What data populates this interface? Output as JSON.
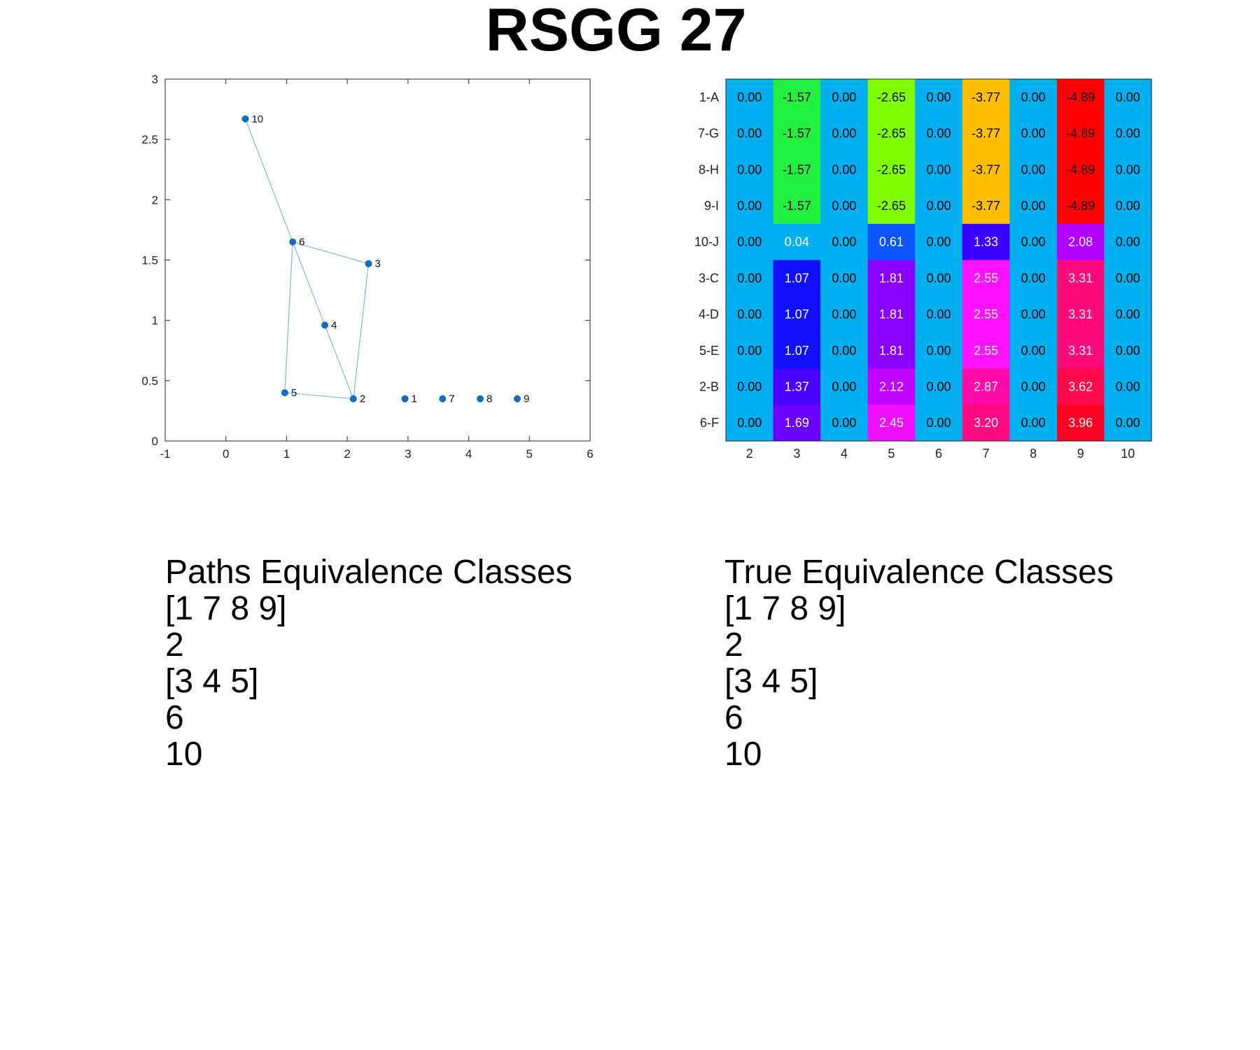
{
  "title": "RSGG 27",
  "graph_chart": {
    "type": "scatter",
    "xlim": [
      -1,
      6
    ],
    "ylim": [
      0,
      3
    ],
    "x_ticks": [
      -1,
      0,
      1,
      2,
      3,
      4,
      5,
      6
    ],
    "y_ticks": [
      0,
      0.5,
      1,
      1.5,
      2,
      2.5,
      3
    ],
    "nodes": [
      {
        "label": "1",
        "x": 2.95,
        "y": 0.35
      },
      {
        "label": "2",
        "x": 2.1,
        "y": 0.35
      },
      {
        "label": "3",
        "x": 2.35,
        "y": 1.47
      },
      {
        "label": "4",
        "x": 1.63,
        "y": 0.96
      },
      {
        "label": "5",
        "x": 0.97,
        "y": 0.4
      },
      {
        "label": "6",
        "x": 1.1,
        "y": 1.65
      },
      {
        "label": "7",
        "x": 3.57,
        "y": 0.35
      },
      {
        "label": "8",
        "x": 4.19,
        "y": 0.35
      },
      {
        "label": "9",
        "x": 4.8,
        "y": 0.35
      },
      {
        "label": "10",
        "x": 0.32,
        "y": 2.67
      }
    ],
    "edges": [
      [
        "10",
        "6"
      ],
      [
        "6",
        "3"
      ],
      [
        "3",
        "2"
      ],
      [
        "6",
        "4"
      ],
      [
        "4",
        "2"
      ],
      [
        "6",
        "5"
      ],
      [
        "5",
        "2"
      ]
    ],
    "color": "#0e6fbd",
    "edge_color": "#7fb6e3"
  },
  "chart_data": {
    "type": "heatmap",
    "columns": [
      "2",
      "3",
      "4",
      "5",
      "6",
      "7",
      "8",
      "9",
      "10"
    ],
    "rows": [
      "1-A",
      "7-G",
      "8-H",
      "9-I",
      "10-J",
      "3-C",
      "4-D",
      "5-E",
      "2-B",
      "6-F"
    ],
    "values": [
      [
        "0.00",
        "-1.57",
        "0.00",
        "-2.65",
        "0.00",
        "-3.77",
        "0.00",
        "-4.89",
        "0.00"
      ],
      [
        "0.00",
        "-1.57",
        "0.00",
        "-2.65",
        "0.00",
        "-3.77",
        "0.00",
        "-4.89",
        "0.00"
      ],
      [
        "0.00",
        "-1.57",
        "0.00",
        "-2.65",
        "0.00",
        "-3.77",
        "0.00",
        "-4.89",
        "0.00"
      ],
      [
        "0.00",
        "-1.57",
        "0.00",
        "-2.65",
        "0.00",
        "-3.77",
        "0.00",
        "-4.89",
        "0.00"
      ],
      [
        "0.00",
        "0.04",
        "0.00",
        "0.61",
        "0.00",
        "1.33",
        "0.00",
        "2.08",
        "0.00"
      ],
      [
        "0.00",
        "1.07",
        "0.00",
        "1.81",
        "0.00",
        "2.55",
        "0.00",
        "3.31",
        "0.00"
      ],
      [
        "0.00",
        "1.07",
        "0.00",
        "1.81",
        "0.00",
        "2.55",
        "0.00",
        "3.31",
        "0.00"
      ],
      [
        "0.00",
        "1.07",
        "0.00",
        "1.81",
        "0.00",
        "2.55",
        "0.00",
        "3.31",
        "0.00"
      ],
      [
        "0.00",
        "1.37",
        "0.00",
        "2.12",
        "0.00",
        "2.87",
        "0.00",
        "3.62",
        "0.00"
      ],
      [
        "0.00",
        "1.69",
        "0.00",
        "2.45",
        "0.00",
        "3.20",
        "0.00",
        "3.96",
        "0.00"
      ]
    ],
    "colors": [
      [
        "#00b0f0",
        "#22f040",
        "#00b0f0",
        "#80ff00",
        "#00b0f0",
        "#ffbf00",
        "#00b0f0",
        "#ff0000",
        "#00b0f0"
      ],
      [
        "#00b0f0",
        "#22f040",
        "#00b0f0",
        "#80ff00",
        "#00b0f0",
        "#ffbf00",
        "#00b0f0",
        "#ff0000",
        "#00b0f0"
      ],
      [
        "#00b0f0",
        "#22f040",
        "#00b0f0",
        "#80ff00",
        "#00b0f0",
        "#ffbf00",
        "#00b0f0",
        "#ff0000",
        "#00b0f0"
      ],
      [
        "#00b0f0",
        "#22f040",
        "#00b0f0",
        "#80ff00",
        "#00b0f0",
        "#ffbf00",
        "#00b0f0",
        "#ff0000",
        "#00b0f0"
      ],
      [
        "#00b0f0",
        "#00b0f0",
        "#00b0f0",
        "#0a55ff",
        "#00b0f0",
        "#3a00ff",
        "#00b0f0",
        "#b400ff",
        "#00b0f0"
      ],
      [
        "#00b0f0",
        "#1010ff",
        "#00b0f0",
        "#8a00ff",
        "#00b0f0",
        "#ff10ff",
        "#00b0f0",
        "#ff0a7a",
        "#00b0f0"
      ],
      [
        "#00b0f0",
        "#1010ff",
        "#00b0f0",
        "#8a00ff",
        "#00b0f0",
        "#ff10ff",
        "#00b0f0",
        "#ff0a7a",
        "#00b0f0"
      ],
      [
        "#00b0f0",
        "#1010ff",
        "#00b0f0",
        "#8a00ff",
        "#00b0f0",
        "#ff10ff",
        "#00b0f0",
        "#ff0a7a",
        "#00b0f0"
      ],
      [
        "#00b0f0",
        "#4a00ff",
        "#00b0f0",
        "#c400ff",
        "#00b0f0",
        "#ff0aa8",
        "#00b0f0",
        "#ff0a4a",
        "#00b0f0"
      ],
      [
        "#00b0f0",
        "#6a00ff",
        "#00b0f0",
        "#ee10ff",
        "#00b0f0",
        "#ff0a80",
        "#00b0f0",
        "#ff0022",
        "#00b0f0"
      ]
    ]
  },
  "paths_classes": {
    "heading": "Paths Equivalence Classes",
    "items": [
      "[1 7 8 9]",
      "2",
      "[3 4 5]",
      "6",
      "10"
    ]
  },
  "true_classes": {
    "heading": "True Equivalence Classes",
    "items": [
      "[1 7 8 9]",
      "2",
      "[3 4 5]",
      "6",
      "10"
    ]
  }
}
